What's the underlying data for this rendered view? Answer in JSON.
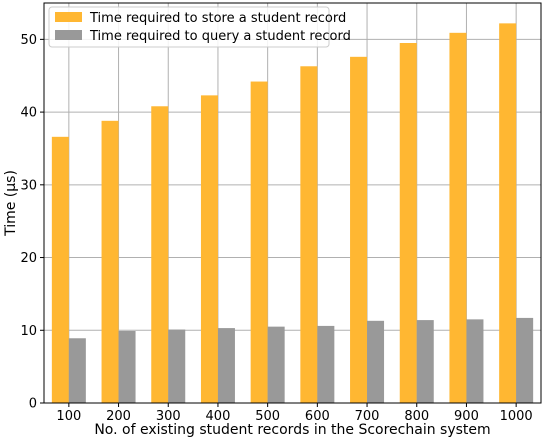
{
  "chart_data": {
    "type": "bar",
    "categories": [
      "100",
      "200",
      "300",
      "400",
      "500",
      "600",
      "700",
      "800",
      "900",
      "1000"
    ],
    "series": [
      {
        "name": "Time required to store a student record",
        "color": "#ffb732",
        "values": [
          36.6,
          38.8,
          40.8,
          42.3,
          44.2,
          46.3,
          47.6,
          49.5,
          50.9,
          52.2
        ]
      },
      {
        "name": "Time required to query a student record",
        "color": "#999999",
        "values": [
          8.9,
          9.9,
          10.1,
          10.3,
          10.5,
          10.6,
          11.3,
          11.4,
          11.5,
          11.7
        ]
      }
    ],
    "xlabel": "No. of existing student records in the Scorechain system",
    "ylabel": "Time (µs)",
    "ylim": [
      0,
      55
    ],
    "yticks": [
      0,
      10,
      20,
      30,
      40,
      50
    ],
    "grid": true,
    "legend": "top-left"
  }
}
